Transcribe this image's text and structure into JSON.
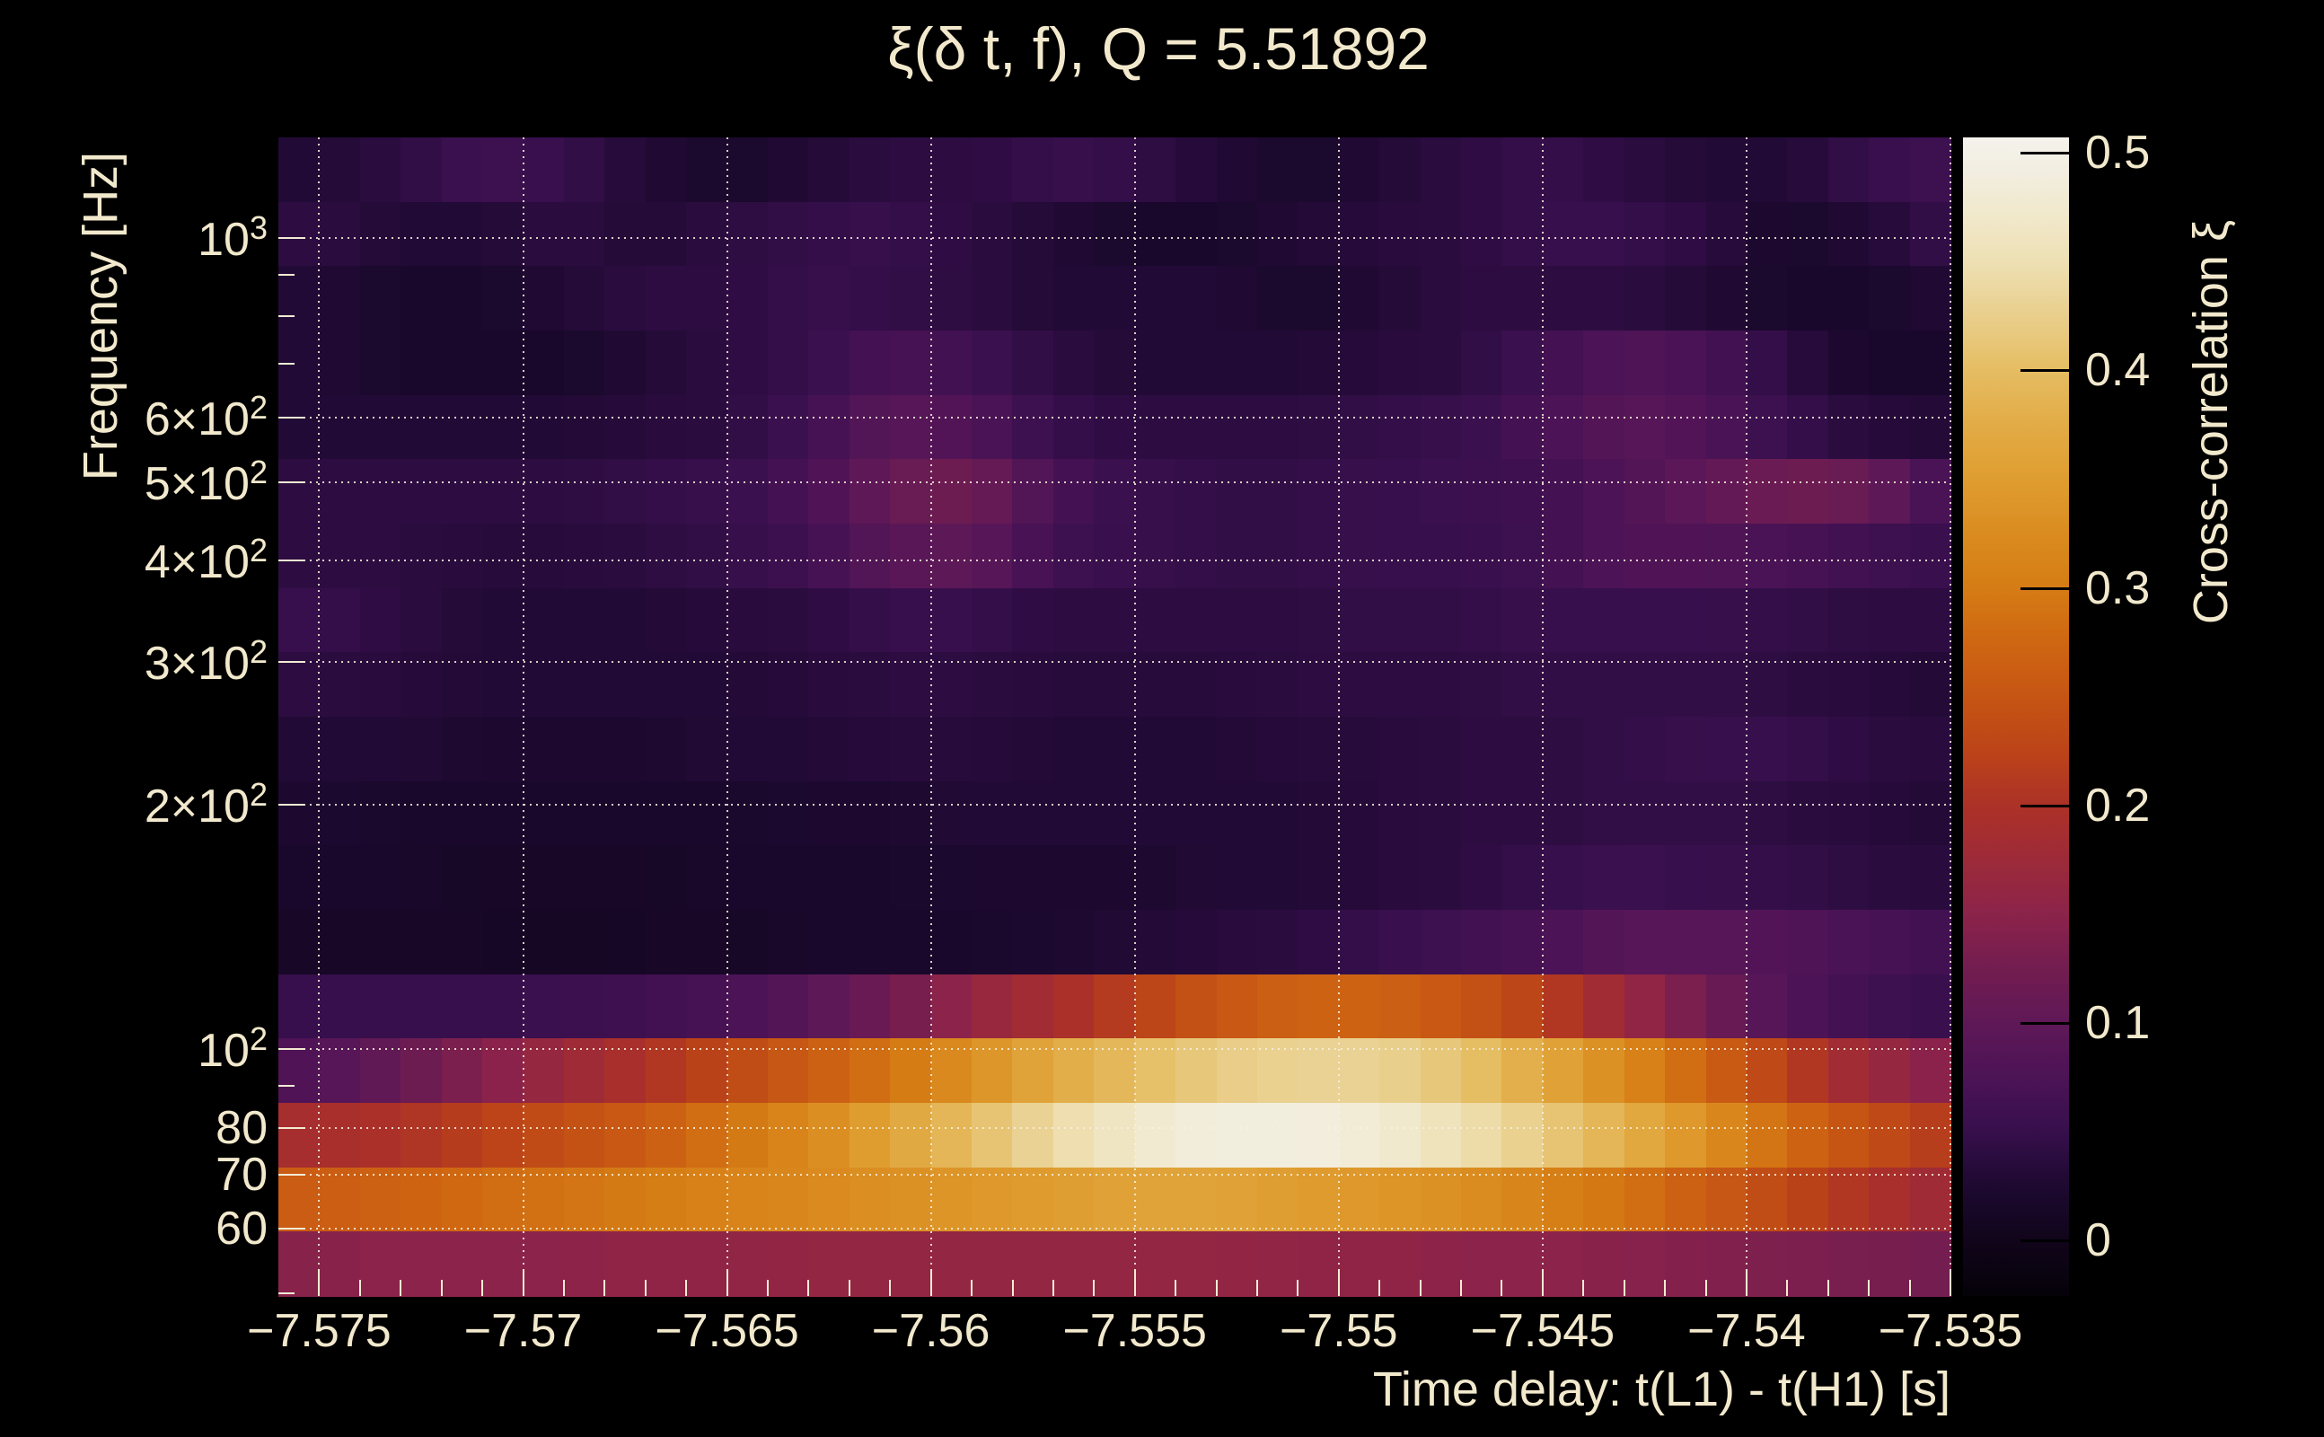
{
  "chart_data": {
    "type": "heatmap",
    "title": "ξ(δ t, f), Q = 5.51892",
    "xlabel": "Time delay: t(L1) - t(H1) [s]",
    "ylabel": "Frequency [Hz]",
    "colorbar_label": "Cross-correlation ξ",
    "x_range_s": [
      -7.576,
      -7.535
    ],
    "y_range_hz": [
      49.6,
      1330
    ],
    "y_scale": "log",
    "color_range": [
      0,
      0.5
    ],
    "grid": true,
    "x_bin_width_s": 0.002,
    "x_centers_s": [
      -7.575,
      -7.573,
      -7.571,
      -7.569,
      -7.567,
      -7.565,
      -7.563,
      -7.561,
      -7.559,
      -7.557,
      -7.555,
      -7.553,
      -7.551,
      -7.549,
      -7.547,
      -7.545,
      -7.543,
      -7.541,
      -7.539,
      -7.537,
      -7.535
    ],
    "y_centers_hz": [
      1212,
      1010,
      841,
      701,
      584,
      486,
      405,
      338,
      281,
      234,
      195,
      163,
      136,
      113,
      94,
      78,
      65,
      55
    ],
    "values_rows_top_to_bottom": [
      [
        0.03,
        0.04,
        0.06,
        0.05,
        0.03,
        0.02,
        0.03,
        0.04,
        0.04,
        0.05,
        0.045,
        0.03,
        0.02,
        0.03,
        0.04,
        0.05,
        0.04,
        0.03,
        0.03,
        0.05,
        0.06
      ],
      [
        0.04,
        0.03,
        0.03,
        0.04,
        0.03,
        0.04,
        0.045,
        0.05,
        0.04,
        0.03,
        0.02,
        0.02,
        0.03,
        0.035,
        0.04,
        0.05,
        0.05,
        0.04,
        0.02,
        0.03,
        0.05
      ],
      [
        0.03,
        0.02,
        0.02,
        0.03,
        0.04,
        0.04,
        0.05,
        0.045,
        0.04,
        0.03,
        0.03,
        0.03,
        0.02,
        0.03,
        0.04,
        0.04,
        0.04,
        0.03,
        0.02,
        0.02,
        0.03
      ],
      [
        0.03,
        0.02,
        0.02,
        0.02,
        0.03,
        0.04,
        0.05,
        0.07,
        0.06,
        0.04,
        0.03,
        0.03,
        0.03,
        0.035,
        0.04,
        0.06,
        0.08,
        0.07,
        0.04,
        0.02,
        0.02
      ],
      [
        0.03,
        0.03,
        0.03,
        0.03,
        0.035,
        0.04,
        0.06,
        0.09,
        0.08,
        0.05,
        0.04,
        0.04,
        0.04,
        0.045,
        0.05,
        0.07,
        0.09,
        0.08,
        0.05,
        0.035,
        0.03
      ],
      [
        0.04,
        0.04,
        0.04,
        0.04,
        0.045,
        0.05,
        0.07,
        0.11,
        0.12,
        0.07,
        0.05,
        0.045,
        0.045,
        0.05,
        0.055,
        0.06,
        0.08,
        0.1,
        0.12,
        0.11,
        0.06
      ],
      [
        0.04,
        0.04,
        0.035,
        0.035,
        0.04,
        0.045,
        0.06,
        0.09,
        0.1,
        0.06,
        0.05,
        0.045,
        0.045,
        0.05,
        0.05,
        0.06,
        0.08,
        0.08,
        0.07,
        0.06,
        0.05
      ],
      [
        0.05,
        0.04,
        0.03,
        0.03,
        0.03,
        0.035,
        0.04,
        0.05,
        0.05,
        0.04,
        0.04,
        0.04,
        0.04,
        0.045,
        0.045,
        0.05,
        0.05,
        0.05,
        0.045,
        0.04,
        0.04
      ],
      [
        0.04,
        0.035,
        0.03,
        0.03,
        0.03,
        0.03,
        0.035,
        0.04,
        0.04,
        0.035,
        0.035,
        0.035,
        0.04,
        0.04,
        0.04,
        0.045,
        0.045,
        0.045,
        0.04,
        0.035,
        0.03
      ],
      [
        0.03,
        0.03,
        0.025,
        0.025,
        0.025,
        0.03,
        0.03,
        0.035,
        0.035,
        0.03,
        0.03,
        0.03,
        0.035,
        0.035,
        0.04,
        0.04,
        0.045,
        0.05,
        0.05,
        0.04,
        0.035
      ],
      [
        0.025,
        0.02,
        0.02,
        0.02,
        0.02,
        0.02,
        0.025,
        0.025,
        0.03,
        0.03,
        0.03,
        0.03,
        0.03,
        0.035,
        0.04,
        0.04,
        0.045,
        0.045,
        0.04,
        0.035,
        0.03
      ],
      [
        0.02,
        0.02,
        0.015,
        0.015,
        0.015,
        0.02,
        0.02,
        0.02,
        0.025,
        0.025,
        0.025,
        0.03,
        0.03,
        0.035,
        0.04,
        0.05,
        0.055,
        0.05,
        0.045,
        0.04,
        0.035
      ],
      [
        0.015,
        0.015,
        0.015,
        0.01,
        0.015,
        0.015,
        0.02,
        0.02,
        0.02,
        0.025,
        0.03,
        0.035,
        0.04,
        0.05,
        0.06,
        0.07,
        0.09,
        0.09,
        0.08,
        0.07,
        0.06
      ],
      [
        0.05,
        0.05,
        0.05,
        0.055,
        0.06,
        0.07,
        0.09,
        0.12,
        0.16,
        0.19,
        0.22,
        0.25,
        0.27,
        0.27,
        0.25,
        0.22,
        0.17,
        0.12,
        0.08,
        0.06,
        0.05
      ],
      [
        0.08,
        0.11,
        0.14,
        0.17,
        0.2,
        0.23,
        0.26,
        0.29,
        0.33,
        0.37,
        0.4,
        0.42,
        0.43,
        0.43,
        0.41,
        0.37,
        0.32,
        0.27,
        0.22,
        0.17,
        0.14
      ],
      [
        0.19,
        0.2,
        0.22,
        0.24,
        0.26,
        0.29,
        0.32,
        0.36,
        0.4,
        0.44,
        0.47,
        0.49,
        0.49,
        0.48,
        0.45,
        0.42,
        0.38,
        0.33,
        0.28,
        0.24,
        0.21
      ],
      [
        0.26,
        0.27,
        0.28,
        0.29,
        0.3,
        0.31,
        0.32,
        0.33,
        0.34,
        0.35,
        0.36,
        0.36,
        0.35,
        0.34,
        0.33,
        0.31,
        0.29,
        0.26,
        0.23,
        0.2,
        0.17
      ],
      [
        0.145,
        0.15,
        0.15,
        0.15,
        0.155,
        0.155,
        0.16,
        0.16,
        0.16,
        0.16,
        0.16,
        0.16,
        0.155,
        0.155,
        0.15,
        0.15,
        0.145,
        0.14,
        0.135,
        0.13,
        0.125
      ]
    ],
    "x_ticks": [
      {
        "value": -7.575,
        "label": "−7.575"
      },
      {
        "value": -7.57,
        "label": "−7.57"
      },
      {
        "value": -7.565,
        "label": "−7.565"
      },
      {
        "value": -7.56,
        "label": "−7.56"
      },
      {
        "value": -7.555,
        "label": "−7.555"
      },
      {
        "value": -7.55,
        "label": "−7.55"
      },
      {
        "value": -7.545,
        "label": "−7.545"
      },
      {
        "value": -7.54,
        "label": "−7.54"
      },
      {
        "value": -7.535,
        "label": "−7.535"
      }
    ],
    "x_minor_tick_step_s": 0.001,
    "y_ticks": [
      {
        "value": 1000,
        "label": "10",
        "sup": "3"
      },
      {
        "value": 600,
        "label": "6×10",
        "sup": "2"
      },
      {
        "value": 500,
        "label": "5×10",
        "sup": "2"
      },
      {
        "value": 400,
        "label": "4×10",
        "sup": "2"
      },
      {
        "value": 300,
        "label": "3×10",
        "sup": "2"
      },
      {
        "value": 200,
        "label": "2×10",
        "sup": "2"
      },
      {
        "value": 100,
        "label": "10",
        "sup": "2"
      },
      {
        "value": 80,
        "label": "80"
      },
      {
        "value": 70,
        "label": "70"
      },
      {
        "value": 60,
        "label": "60"
      }
    ],
    "y_minor_ticks": [
      900,
      800,
      700,
      90,
      50
    ],
    "colorbar_ticks": [
      {
        "value": 0.5,
        "label": "0.5"
      },
      {
        "value": 0.4,
        "label": "0.4"
      },
      {
        "value": 0.3,
        "label": "0.3"
      },
      {
        "value": 0.2,
        "label": "0.2"
      },
      {
        "value": 0.1,
        "label": "0.1"
      },
      {
        "value": 0.0,
        "label": "0"
      }
    ],
    "colormap_stops": [
      [
        -0.03,
        "#030106"
      ],
      [
        0.0,
        "#10051a"
      ],
      [
        0.025,
        "#1d0930"
      ],
      [
        0.05,
        "#370f4c"
      ],
      [
        0.075,
        "#4c1356"
      ],
      [
        0.1,
        "#5f1857"
      ],
      [
        0.125,
        "#731d50"
      ],
      [
        0.15,
        "#8c234a"
      ],
      [
        0.175,
        "#9d2a38"
      ],
      [
        0.2,
        "#ac3127"
      ],
      [
        0.225,
        "#bc4418"
      ],
      [
        0.25,
        "#c65514"
      ],
      [
        0.275,
        "#cf6612"
      ],
      [
        0.3,
        "#d57c15"
      ],
      [
        0.325,
        "#da8c20"
      ],
      [
        0.35,
        "#df9d30"
      ],
      [
        0.375,
        "#e2ac46"
      ],
      [
        0.4,
        "#e5bd62"
      ],
      [
        0.425,
        "#e9cf8c"
      ],
      [
        0.45,
        "#eee0b4"
      ],
      [
        0.475,
        "#f1ead0"
      ],
      [
        0.5,
        "#f3f0e8"
      ],
      [
        0.51,
        "#f5f3ec"
      ]
    ],
    "colors": {
      "background": "#000000",
      "text": "#f2e9cd",
      "grid": "rgba(248,241,224,0.85)",
      "axis_tick": "#f2ebd3"
    }
  }
}
